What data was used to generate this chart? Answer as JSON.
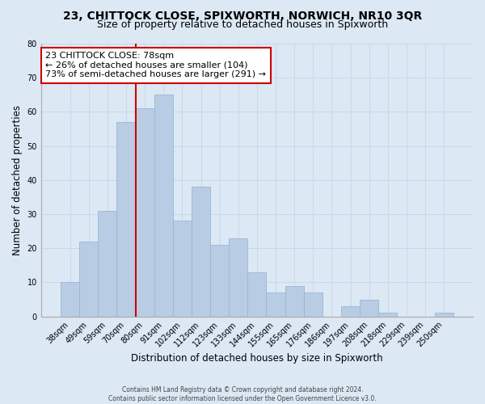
{
  "title": "23, CHITTOCK CLOSE, SPIXWORTH, NORWICH, NR10 3QR",
  "subtitle": "Size of property relative to detached houses in Spixworth",
  "xlabel": "Distribution of detached houses by size in Spixworth",
  "ylabel": "Number of detached properties",
  "footer_line1": "Contains HM Land Registry data © Crown copyright and database right 2024.",
  "footer_line2": "Contains public sector information licensed under the Open Government Licence v3.0.",
  "bar_labels": [
    "38sqm",
    "49sqm",
    "59sqm",
    "70sqm",
    "80sqm",
    "91sqm",
    "102sqm",
    "112sqm",
    "123sqm",
    "133sqm",
    "144sqm",
    "155sqm",
    "165sqm",
    "176sqm",
    "186sqm",
    "197sqm",
    "208sqm",
    "218sqm",
    "229sqm",
    "239sqm",
    "250sqm"
  ],
  "bar_values": [
    10,
    22,
    31,
    57,
    61,
    65,
    28,
    38,
    21,
    23,
    13,
    7,
    9,
    7,
    0,
    3,
    5,
    1,
    0,
    0,
    1
  ],
  "bar_color": "#b8cce4",
  "bar_edge_color": "#9ab8d4",
  "red_line_color": "#cc0000",
  "annotation_title": "23 CHITTOCK CLOSE: 78sqm",
  "annotation_line1": "← 26% of detached houses are smaller (104)",
  "annotation_line2": "73% of semi-detached houses are larger (291) →",
  "annotation_box_color": "white",
  "annotation_box_edge_color": "#cc0000",
  "ylim": [
    0,
    80
  ],
  "yticks": [
    0,
    10,
    20,
    30,
    40,
    50,
    60,
    70,
    80
  ],
  "grid_color": "#c8d8e8",
  "bg_color": "#dce8f4",
  "title_fontsize": 10,
  "subtitle_fontsize": 9,
  "axis_label_fontsize": 8.5,
  "tick_fontsize": 7,
  "annotation_fontsize": 8,
  "footer_fontsize": 5.5
}
